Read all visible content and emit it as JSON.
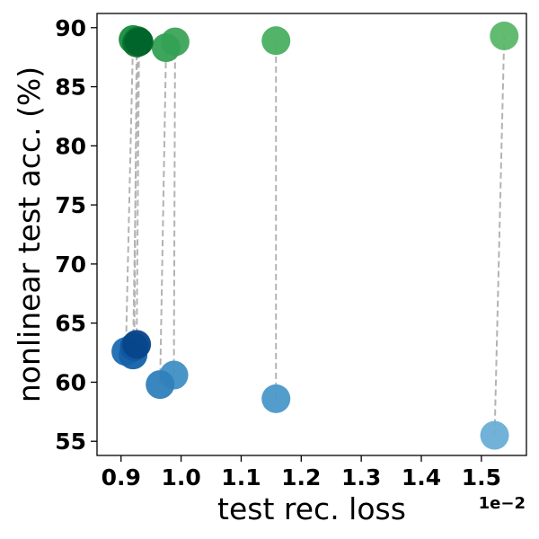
{
  "chart_data": {
    "type": "scatter",
    "title": "",
    "xlabel": "test rec. loss",
    "ylabel": "nonlinear test acc. (%)",
    "x_offset_label": "1e−2",
    "xlim": [
      0.86,
      1.575
    ],
    "ylim": [
      53.8,
      91.2
    ],
    "x_ticks": [
      0.9,
      1.0,
      1.1,
      1.2,
      1.3,
      1.4,
      1.5
    ],
    "x_tick_labels": [
      "0.9",
      "1.0",
      "1.1",
      "1.2",
      "1.3",
      "1.4",
      "1.5"
    ],
    "y_ticks": [
      55,
      60,
      65,
      70,
      75,
      80,
      85,
      90
    ],
    "y_tick_labels": [
      "55",
      "60",
      "65",
      "70",
      "75",
      "80",
      "85",
      "90"
    ],
    "grid": false,
    "connector_style": "dashed",
    "connector_color": "#b3b3b3",
    "pairs": [
      {
        "blue": {
          "x": 1.522,
          "y": 55.5
        },
        "green": {
          "x": 1.538,
          "y": 89.3
        },
        "blue_color": "#6aaed6",
        "green_color": "#5ab769"
      },
      {
        "blue": {
          "x": 1.158,
          "y": 58.6
        },
        "green": {
          "x": 1.158,
          "y": 88.9
        },
        "blue_color": "#4a98c9",
        "green_color": "#4aaf61"
      },
      {
        "blue": {
          "x": 0.988,
          "y": 60.6
        },
        "green": {
          "x": 0.99,
          "y": 88.8
        },
        "blue_color": "#3f8fc5",
        "green_color": "#3da35a"
      },
      {
        "blue": {
          "x": 0.965,
          "y": 59.8
        },
        "green": {
          "x": 0.975,
          "y": 88.3
        },
        "blue_color": "#2f7fbc",
        "green_color": "#34a153"
      },
      {
        "blue": {
          "x": 0.908,
          "y": 62.6
        },
        "green": {
          "x": 0.92,
          "y": 89.0
        },
        "blue_color": "#1c6cb1",
        "green_color": "#168c3f"
      },
      {
        "blue": {
          "x": 0.92,
          "y": 62.3
        },
        "green": {
          "x": 0.928,
          "y": 88.9
        },
        "blue_color": "#1561a9",
        "green_color": "#0e7e36"
      },
      {
        "blue": {
          "x": 0.922,
          "y": 63.0
        },
        "green": {
          "x": 0.926,
          "y": 88.7
        },
        "blue_color": "#0d57a1",
        "green_color": "#087030"
      },
      {
        "blue": {
          "x": 0.926,
          "y": 63.2
        },
        "green": {
          "x": 0.93,
          "y": 88.8
        },
        "blue_color": "#08468a",
        "green_color": "#00642a"
      }
    ]
  }
}
